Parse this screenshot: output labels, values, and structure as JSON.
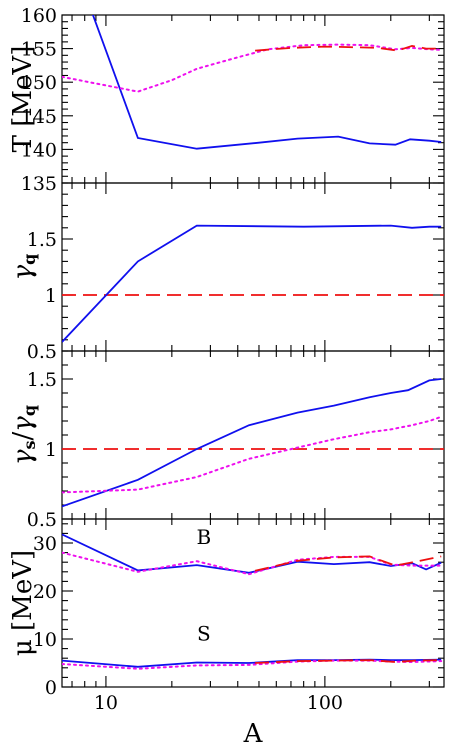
{
  "chart_data": {
    "type": "line",
    "xscale": "log",
    "xlim": [
      6.3,
      350
    ],
    "x_ticks": [
      10,
      100
    ],
    "x_tick_labels": [
      "10",
      "100"
    ],
    "xlabel": "A",
    "colors": {
      "series_solid": "#1010ee",
      "series_dash": "#ee1010",
      "series_dot": "#ee10ee",
      "reference_line": "#ee1010"
    },
    "panels": [
      {
        "id": "T",
        "ylabel": "T [MeV]",
        "ylim": [
          135,
          160
        ],
        "y_ticks": [
          135,
          140,
          145,
          150,
          155,
          160
        ],
        "y_tick_labels": [
          "135",
          "140",
          "145",
          "150",
          "155",
          "160"
        ],
        "series": [
          {
            "style": "solid",
            "color": "#1010ee",
            "points": [
              [
                6.3,
                168
              ],
              [
                8.5,
                161
              ],
              [
                14,
                141.7
              ],
              [
                26,
                140.1
              ],
              [
                50,
                141
              ],
              [
                75,
                141.6
              ],
              [
                115,
                141.9
              ],
              [
                160,
                140.9
              ],
              [
                210,
                140.7
              ],
              [
                245,
                141.5
              ],
              [
                300,
                141.3
              ],
              [
                340,
                141.1
              ]
            ]
          },
          {
            "style": "dotted",
            "color": "#ee10ee",
            "points": [
              [
                6.3,
                150.8
              ],
              [
                9,
                149.8
              ],
              [
                14,
                148.6
              ],
              [
                20,
                150.3
              ],
              [
                26,
                152
              ],
              [
                40,
                153.7
              ],
              [
                55,
                154.9
              ],
              [
                80,
                155.5
              ],
              [
                115,
                155.6
              ],
              [
                160,
                155.5
              ],
              [
                210,
                154.9
              ],
              [
                250,
                155.1
              ],
              [
                300,
                154.9
              ],
              [
                340,
                154.8
              ]
            ]
          },
          {
            "style": "dashed",
            "color": "#ee1010",
            "points": [
              [
                48,
                154.7
              ],
              [
                70,
                155.1
              ],
              [
                100,
                155.3
              ],
              [
                140,
                155.2
              ],
              [
                175,
                155.1
              ],
              [
                215,
                154.7
              ],
              [
                250,
                155.4
              ],
              [
                290,
                155
              ],
              [
                340,
                155
              ]
            ]
          }
        ],
        "annotations": []
      },
      {
        "id": "gamma_q",
        "ylabel": "γ_q",
        "ylim": [
          0.5,
          2
        ],
        "y_ticks": [
          0.5,
          1,
          1.5
        ],
        "y_tick_labels": [
          "0.5",
          "1",
          "1.5"
        ],
        "series": [
          {
            "style": "solid",
            "color": "#1010ee",
            "points": [
              [
                6.3,
                0.58
              ],
              [
                14,
                1.3
              ],
              [
                26,
                1.62
              ],
              [
                80,
                1.61
              ],
              [
                200,
                1.62
              ],
              [
                250,
                1.6
              ],
              [
                300,
                1.61
              ],
              [
                340,
                1.61
              ]
            ]
          }
        ],
        "reference_lines": [
          {
            "y": 1,
            "style": "dashed",
            "color": "#ee1010"
          }
        ],
        "annotations": []
      },
      {
        "id": "gamma_s_over_gamma_q",
        "ylabel": "γ_s/γ_q",
        "ylim": [
          0.5,
          1.7
        ],
        "y_ticks": [
          0.5,
          1,
          1.5
        ],
        "y_tick_labels": [
          "0.5",
          "1",
          "1.5"
        ],
        "series": [
          {
            "style": "solid",
            "color": "#1010ee",
            "points": [
              [
                6.3,
                0.59
              ],
              [
                14,
                0.78
              ],
              [
                26,
                1.0
              ],
              [
                45,
                1.17
              ],
              [
                75,
                1.26
              ],
              [
                110,
                1.31
              ],
              [
                160,
                1.37
              ],
              [
                200,
                1.4
              ],
              [
                240,
                1.42
              ],
              [
                300,
                1.49
              ],
              [
                340,
                1.5
              ]
            ]
          },
          {
            "style": "dotted",
            "color": "#ee10ee",
            "points": [
              [
                6.3,
                0.69
              ],
              [
                14,
                0.71
              ],
              [
                26,
                0.8
              ],
              [
                45,
                0.93
              ],
              [
                75,
                1.01
              ],
              [
                110,
                1.07
              ],
              [
                160,
                1.12
              ],
              [
                200,
                1.14
              ],
              [
                250,
                1.17
              ],
              [
                300,
                1.2
              ],
              [
                340,
                1.23
              ]
            ]
          }
        ],
        "reference_lines": [
          {
            "y": 1,
            "style": "dashed",
            "color": "#ee1010"
          }
        ],
        "annotations": []
      },
      {
        "id": "mu",
        "ylabel": "μ [MeV]",
        "ylim": [
          0,
          35
        ],
        "y_ticks": [
          0,
          10,
          20,
          30
        ],
        "y_tick_labels": [
          "0",
          "10",
          "20",
          "30"
        ],
        "series": [
          {
            "style": "solid",
            "color": "#1010ee",
            "points": [
              [
                6.3,
                31.8
              ],
              [
                14,
                24.3
              ],
              [
                26,
                25.4
              ],
              [
                45,
                23.8
              ],
              [
                75,
                26.1
              ],
              [
                110,
                25.6
              ],
              [
                160,
                26
              ],
              [
                200,
                25.2
              ],
              [
                250,
                25.8
              ],
              [
                290,
                24.5
              ],
              [
                340,
                25.9
              ]
            ]
          },
          {
            "style": "dotted",
            "color": "#ee10ee",
            "points": [
              [
                6.3,
                28
              ],
              [
                14,
                24
              ],
              [
                26,
                26.2
              ],
              [
                45,
                23.5
              ],
              [
                75,
                26.5
              ],
              [
                110,
                27.1
              ],
              [
                160,
                27.1
              ],
              [
                200,
                25.5
              ],
              [
                250,
                25.3
              ],
              [
                340,
                25.3
              ]
            ]
          },
          {
            "style": "dashed",
            "color": "#ee1010",
            "points": [
              [
                48,
                24.2
              ],
              [
                75,
                26.3
              ],
              [
                110,
                27
              ],
              [
                160,
                27.2
              ],
              [
                210,
                25.3
              ],
              [
                260,
                26.1
              ],
              [
                340,
                27.2
              ]
            ]
          },
          {
            "style": "solid",
            "color": "#1010ee",
            "points": [
              [
                6.3,
                5.5
              ],
              [
                14,
                4.2
              ],
              [
                26,
                5.1
              ],
              [
                45,
                5.0
              ],
              [
                75,
                5.6
              ],
              [
                110,
                5.6
              ],
              [
                160,
                5.7
              ],
              [
                200,
                5.6
              ],
              [
                250,
                5.6
              ],
              [
                340,
                5.7
              ]
            ]
          },
          {
            "style": "dotted",
            "color": "#ee10ee",
            "points": [
              [
                6.3,
                4.8
              ],
              [
                14,
                3.8
              ],
              [
                26,
                4.5
              ],
              [
                45,
                4.6
              ],
              [
                75,
                5.3
              ],
              [
                110,
                5.5
              ],
              [
                160,
                5.5
              ],
              [
                200,
                5.3
              ],
              [
                250,
                5.2
              ],
              [
                340,
                5.4
              ]
            ]
          },
          {
            "style": "dashed",
            "color": "#ee1010",
            "points": [
              [
                48,
                5.0
              ],
              [
                75,
                5.4
              ],
              [
                110,
                5.5
              ],
              [
                160,
                5.6
              ],
              [
                210,
                5.2
              ],
              [
                260,
                5.5
              ],
              [
                340,
                5.6
              ]
            ]
          }
        ],
        "annotations": [
          {
            "text": "B",
            "x": 28,
            "y": 29.8
          },
          {
            "text": "S",
            "x": 28,
            "y": 9.7
          }
        ]
      }
    ]
  }
}
